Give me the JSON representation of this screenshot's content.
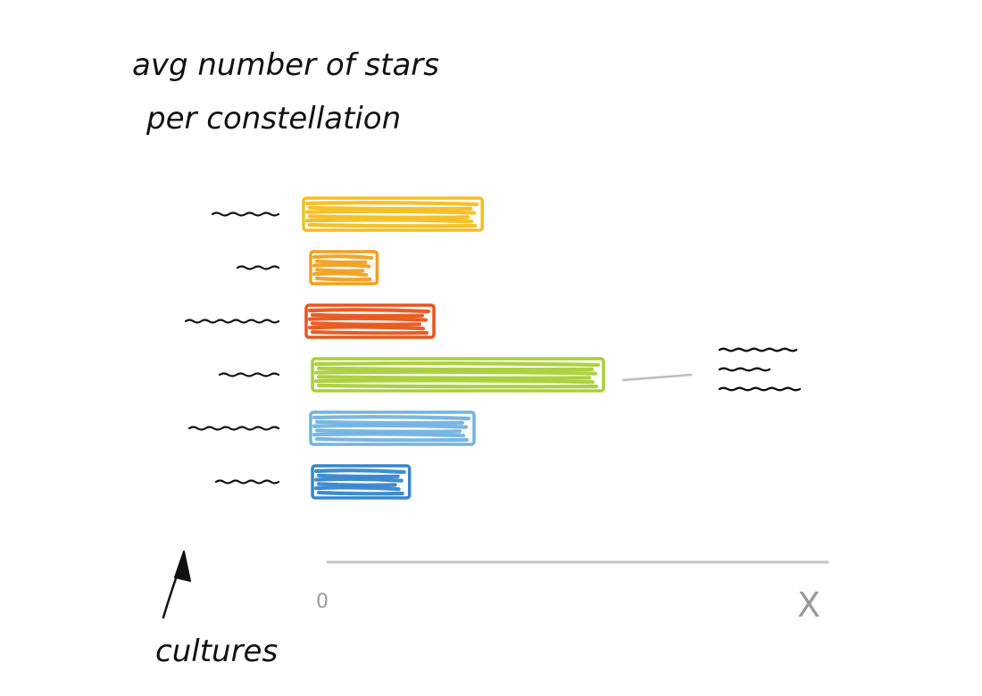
{
  "chart_data": {
    "type": "bar",
    "orientation": "horizontal",
    "title_lines": [
      "avg number of stars",
      "per constellation"
    ],
    "ylabel": "cultures",
    "x_tick_min": "0",
    "x_tick_max": "X",
    "xlim": [
      0,
      100
    ],
    "grid": false,
    "categories_label_style": "squiggle-placeholder",
    "bars": [
      {
        "value": 35,
        "color": "#f5bd1f"
      },
      {
        "value": 13,
        "color": "#f0a020"
      },
      {
        "value": 25,
        "color": "#e8541b"
      },
      {
        "value": 57,
        "color": "#a9cf38"
      },
      {
        "value": 32,
        "color": "#72b2e2"
      },
      {
        "value": 19,
        "color": "#3685cf"
      }
    ],
    "highlight": {
      "bar_index": 3,
      "annotation": "squiggle-placeholder",
      "annotation_lines": 3
    }
  }
}
